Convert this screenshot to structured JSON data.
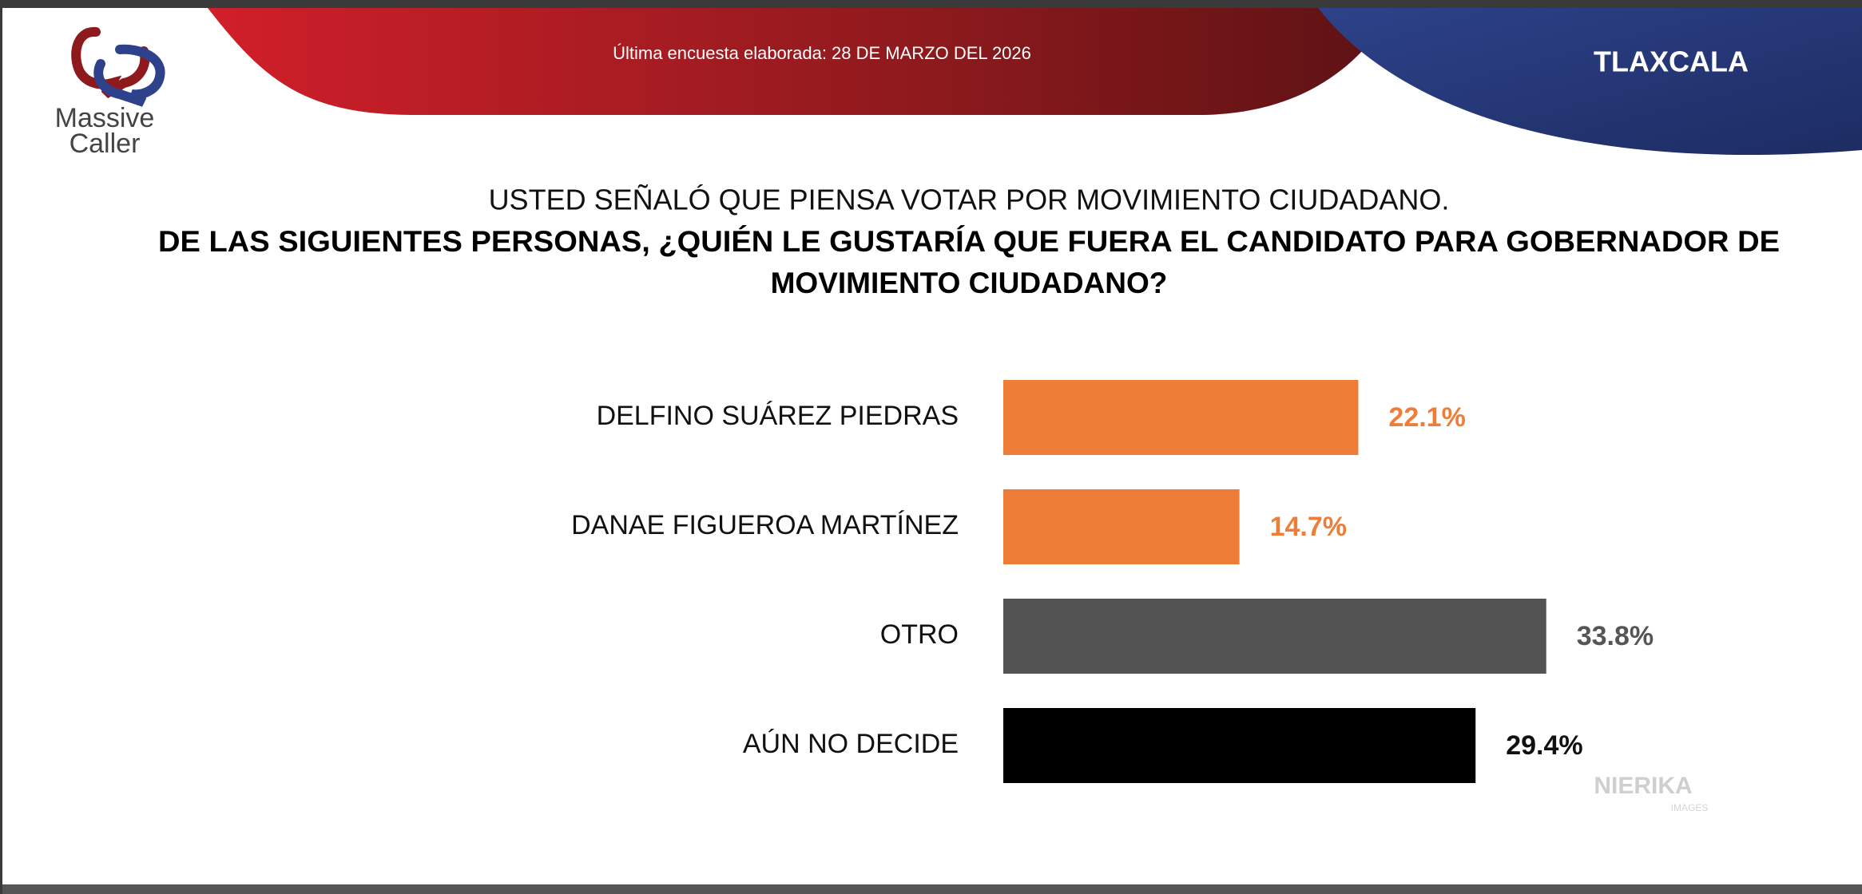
{
  "header": {
    "logo": {
      "line1": "Massive",
      "line2": "Caller"
    },
    "survey_date": "Última encuesta elaborada: 28 DE MARZO DEL 2026",
    "region": "TLAXCALA"
  },
  "chart_data": {
    "type": "bar",
    "orientation": "horizontal",
    "title": "USTED SEÑALÓ QUE PIENSA VOTAR POR MOVIMIENTO CIUDADANO.",
    "subtitle": [
      "DE LAS SIGUIENTES PERSONAS, ¿QUIÉN LE GUSTARÍA QUE FUERA EL CANDIDATO PARA GOBERNADOR DE",
      "MOVIMIENTO CIUDADANO?"
    ],
    "categories": [
      "DELFINO SUÁREZ PIEDRAS",
      "DANAE FIGUEROA MARTÍNEZ",
      "OTRO",
      "AÚN NO DECIDE"
    ],
    "values": [
      22.1,
      14.7,
      33.8,
      29.4
    ],
    "value_labels": [
      "22.1%",
      "14.7%",
      "33.8%",
      "29.4%"
    ],
    "colors": [
      "#ed7d37",
      "#ed7d37",
      "#535353",
      "#000000"
    ],
    "label_colors": [
      "#ed7d37",
      "#ed7d37",
      "#555555",
      "#111111"
    ]
  },
  "watermark": {
    "text": "NIERIKA",
    "subtext": "IMAGES"
  }
}
